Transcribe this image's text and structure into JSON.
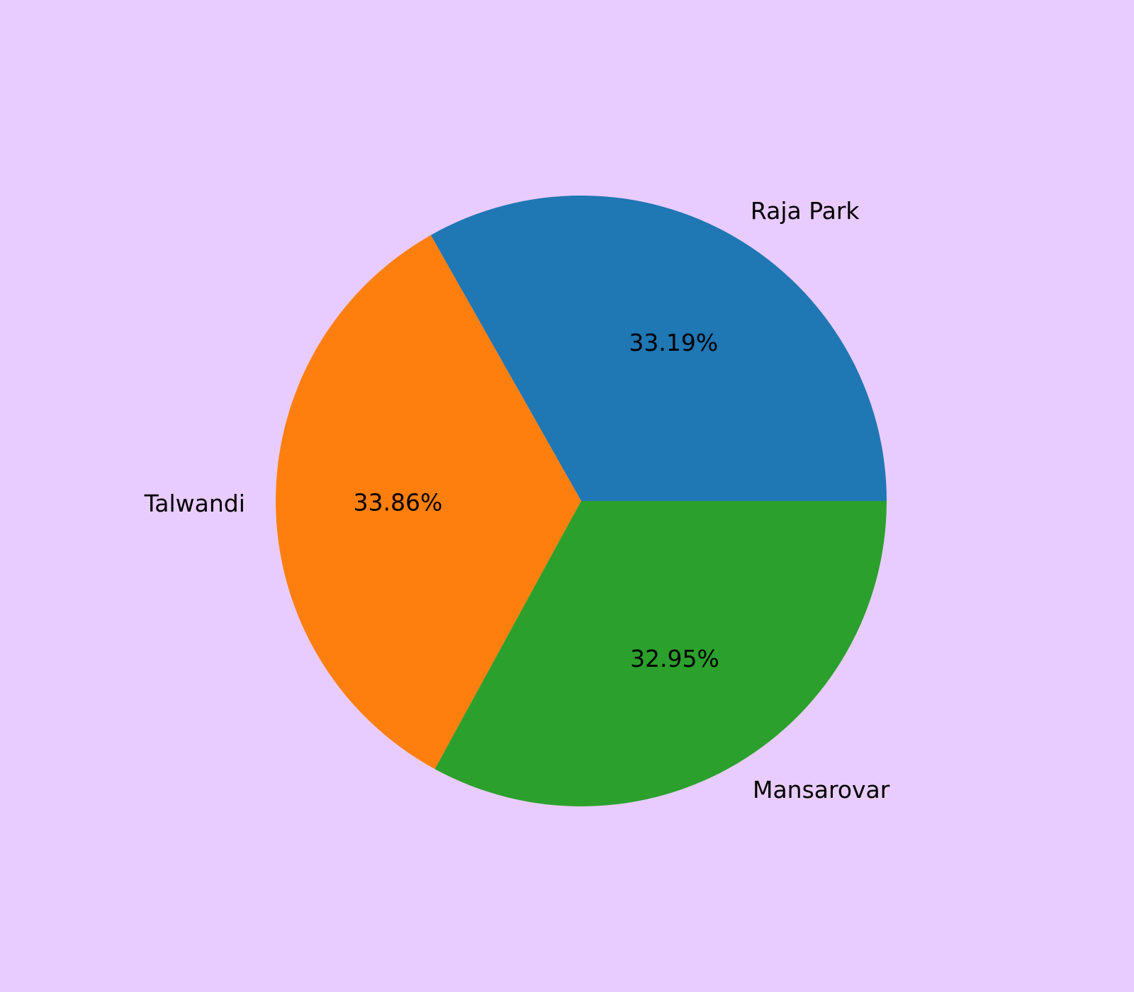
{
  "page": {
    "background": "#e8ccff"
  },
  "chart_data": {
    "type": "pie",
    "title": "",
    "categories": [
      "Raja Park",
      "Talwandi",
      "Mansarovar"
    ],
    "values": [
      33.19,
      33.86,
      32.95
    ],
    "percent_labels": [
      "33.19%",
      "33.86%",
      "32.95%"
    ],
    "colors": [
      "#1f77b4",
      "#ff7f0e",
      "#2ca02c"
    ],
    "start_angle_deg": 0,
    "direction": "counterclockwise",
    "legend": "none"
  }
}
